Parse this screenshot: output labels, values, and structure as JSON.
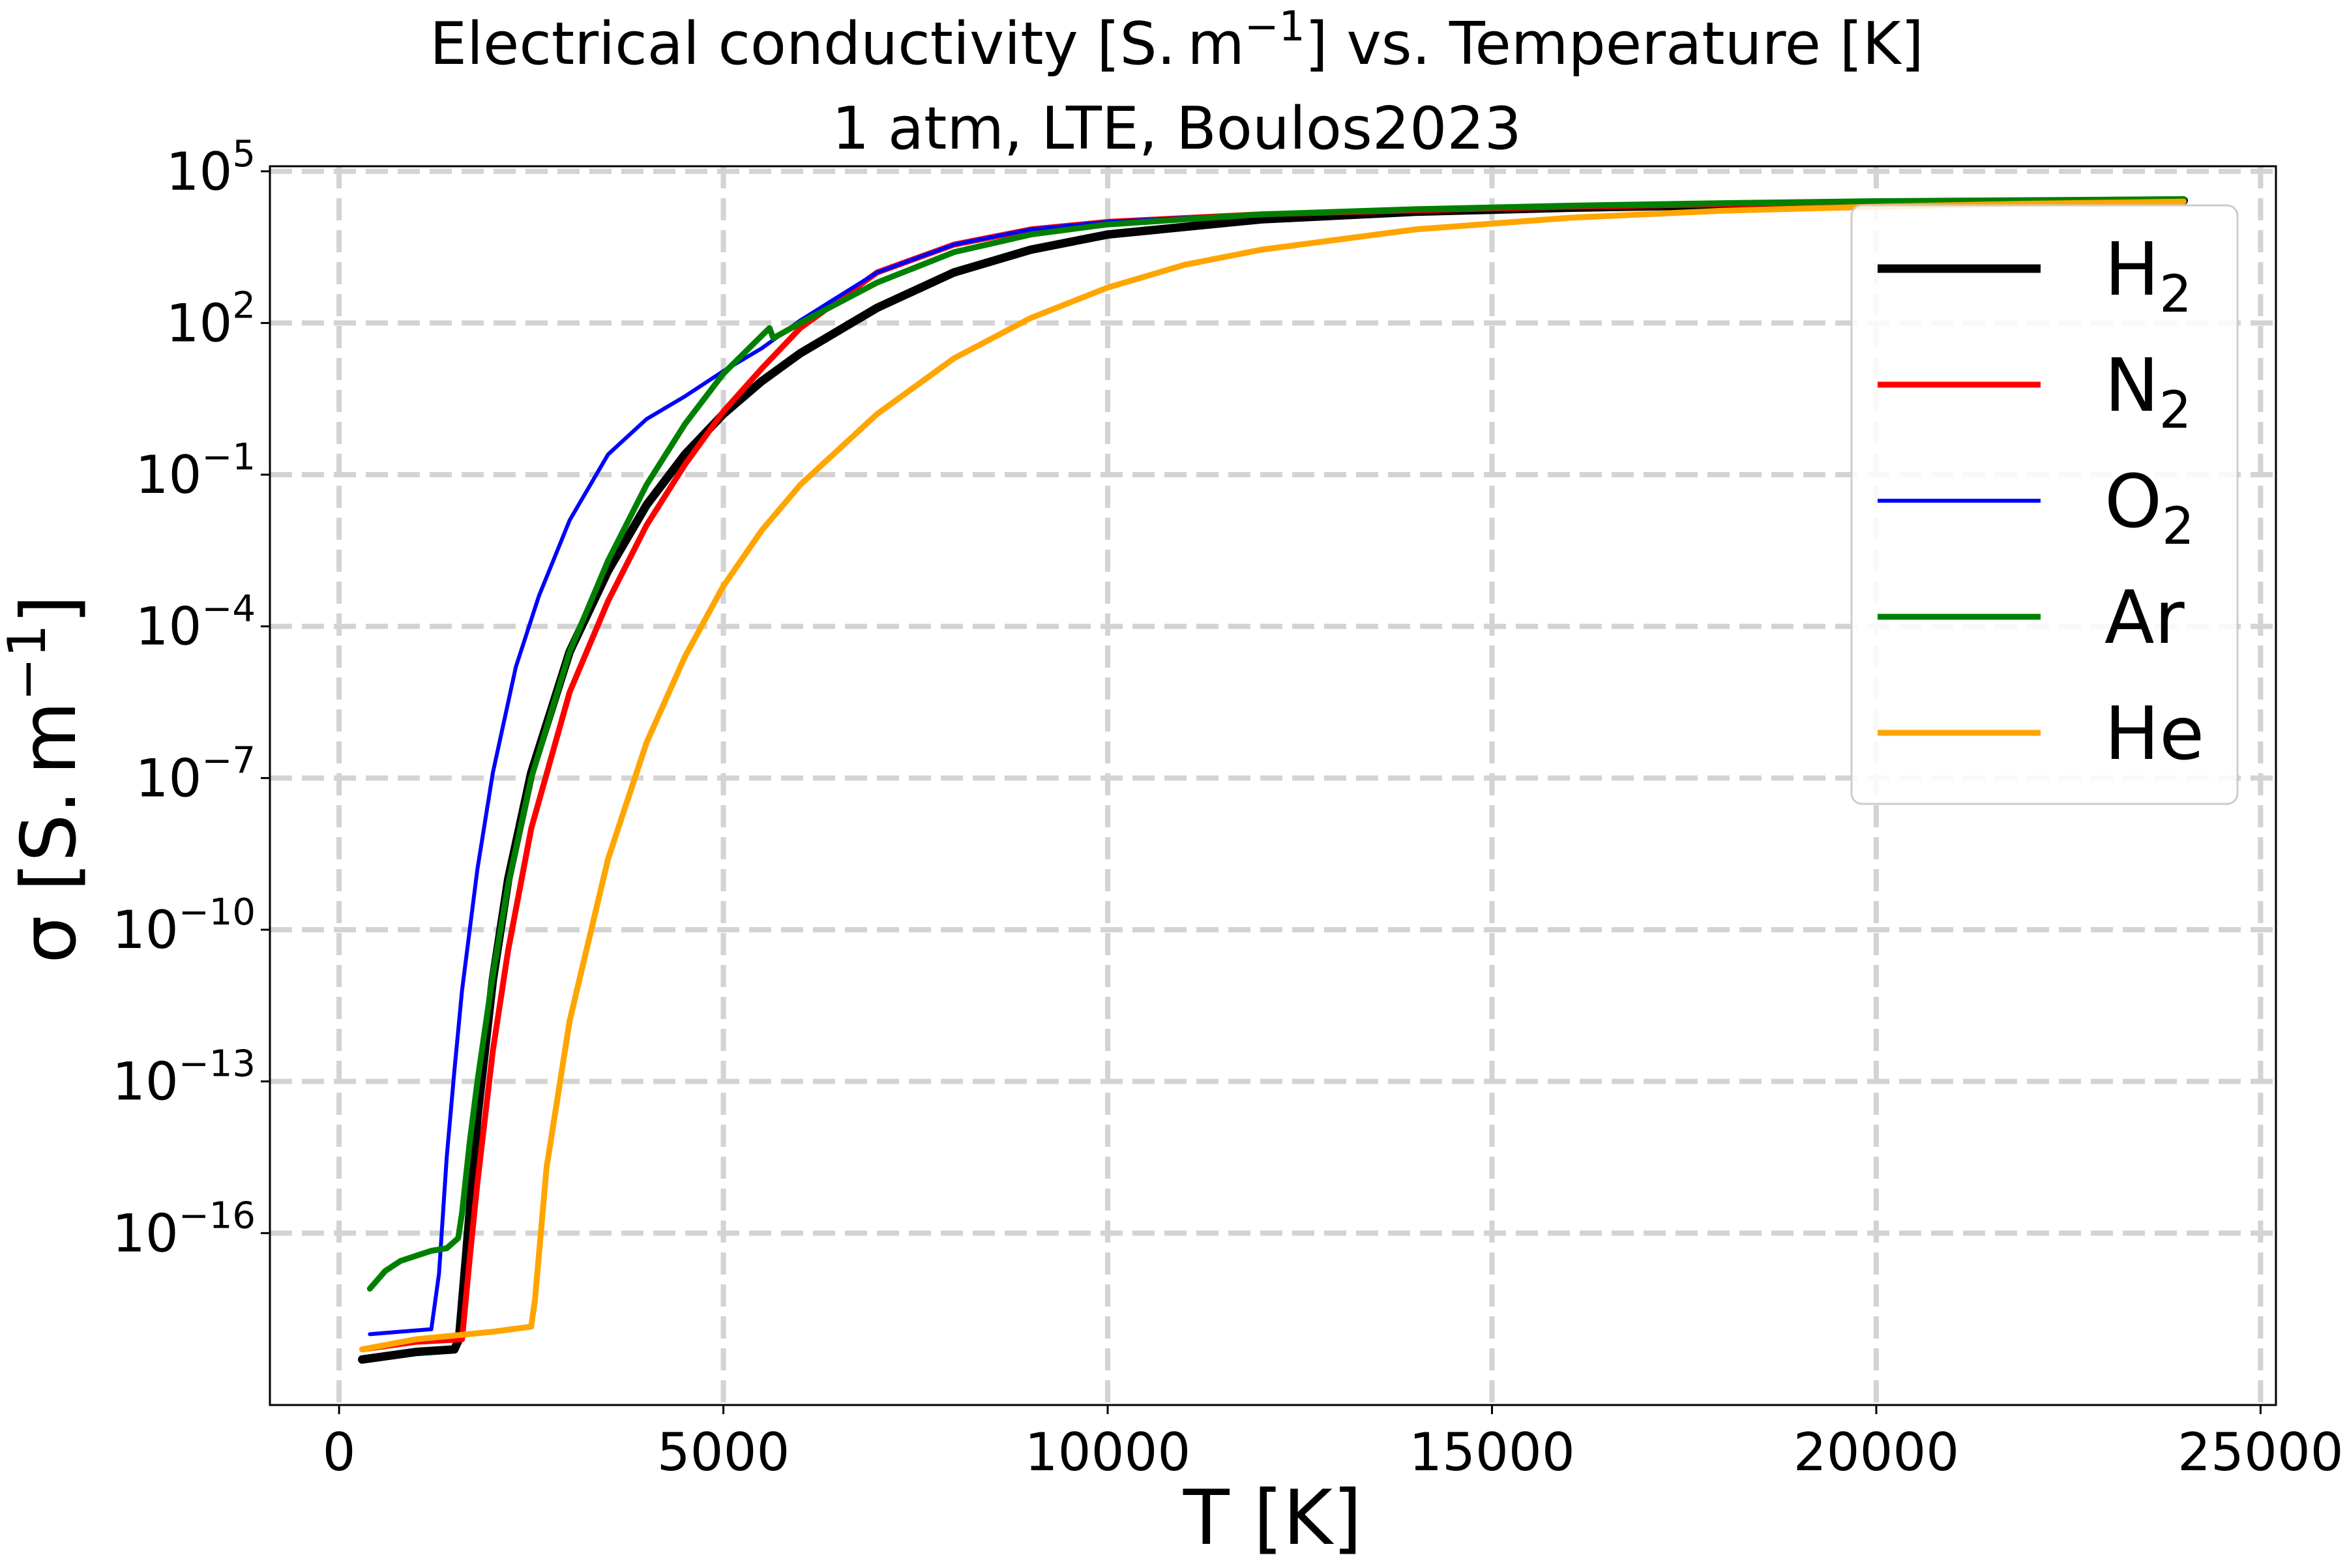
{
  "chart_data": {
    "type": "line",
    "title_line1_parts": [
      "Electrical conductivity [S. m",
      "−1",
      "] vs. Temperature [K]"
    ],
    "title_line2": "1 atm, LTE, Boulos2023",
    "xlabel": "T [K]",
    "ylabel_parts": [
      "σ [S. m",
      "−1",
      "]"
    ],
    "xscale": "linear",
    "yscale": "log",
    "xlim": [
      -900,
      25200
    ],
    "ylim_log10": [
      -19.4,
      5.1
    ],
    "x_ticks": [
      {
        "value": 0,
        "label": "0"
      },
      {
        "value": 5000,
        "label": "5000"
      },
      {
        "value": 10000,
        "label": "10000"
      },
      {
        "value": 15000,
        "label": "15000"
      },
      {
        "value": 20000,
        "label": "20000"
      },
      {
        "value": 25000,
        "label": "25000"
      }
    ],
    "y_ticks": [
      {
        "exp": 5,
        "base": "10",
        "sup": "5"
      },
      {
        "exp": 2,
        "base": "10",
        "sup": "2"
      },
      {
        "exp": -1,
        "base": "10",
        "sup": "−1"
      },
      {
        "exp": -4,
        "base": "10",
        "sup": "−4"
      },
      {
        "exp": -7,
        "base": "10",
        "sup": "−7"
      },
      {
        "exp": -10,
        "base": "10",
        "sup": "−10"
      },
      {
        "exp": -13,
        "base": "10",
        "sup": "−13"
      },
      {
        "exp": -16,
        "base": "10",
        "sup": "−16"
      }
    ],
    "grid": true,
    "legend_position": "upper right",
    "y_values_are": "log10(sigma)",
    "series": [
      {
        "name": "H₂",
        "label_base": "H",
        "label_sub": "2",
        "color": "#000000",
        "width_class": "thick",
        "x": [
          300,
          1000,
          1500,
          1560,
          1650,
          1800,
          2000,
          2200,
          2500,
          3000,
          3500,
          4000,
          4500,
          5000,
          5500,
          6000,
          7000,
          8000,
          9000,
          10000,
          12000,
          14000,
          16000,
          18000,
          20000,
          22000,
          24000
        ],
        "y": [
          -18.5,
          -18.35,
          -18.3,
          -18.1,
          -16.5,
          -13.7,
          -11.0,
          -9.0,
          -6.9,
          -4.5,
          -2.9,
          -1.6,
          -0.6,
          0.2,
          0.85,
          1.4,
          2.3,
          3.0,
          3.45,
          3.75,
          4.05,
          4.2,
          4.28,
          4.33,
          4.37,
          4.4,
          4.42
        ]
      },
      {
        "name": "N₂",
        "label_base": "N",
        "label_sub": "2",
        "color": "#ff0000",
        "width_class": "medium",
        "x": [
          300,
          1000,
          1600,
          1700,
          1800,
          2000,
          2200,
          2500,
          3000,
          3500,
          4000,
          4500,
          5000,
          5500,
          6000,
          7000,
          8000,
          9000,
          10000,
          12000,
          14000,
          16000,
          18000,
          20000,
          22000,
          24000
        ],
        "y": [
          -18.3,
          -18.15,
          -18.1,
          -16.5,
          -15.0,
          -12.4,
          -10.4,
          -8.0,
          -5.3,
          -3.5,
          -2.0,
          -0.8,
          0.25,
          1.1,
          1.9,
          3.0,
          3.55,
          3.85,
          4.0,
          4.15,
          4.23,
          4.3,
          4.35,
          4.4,
          4.42,
          4.45
        ]
      },
      {
        "name": "O₂",
        "label_base": "O",
        "label_sub": "2",
        "color": "#0000ff",
        "width_class": "thin",
        "x": [
          400,
          1200,
          1300,
          1400,
          1500,
          1600,
          1800,
          2000,
          2300,
          2600,
          3000,
          3500,
          4000,
          4500,
          5000,
          5500,
          6000,
          7000,
          8000,
          9000,
          10000,
          12000,
          14000,
          16000,
          18000,
          20000,
          22000,
          24000
        ],
        "y": [
          -18.0,
          -17.9,
          -16.8,
          -14.5,
          -12.8,
          -11.2,
          -8.8,
          -6.9,
          -4.8,
          -3.4,
          -1.9,
          -0.6,
          0.1,
          0.55,
          1.05,
          1.5,
          2.05,
          3.0,
          3.55,
          3.85,
          4.0,
          4.15,
          4.23,
          4.3,
          4.35,
          4.4,
          4.42,
          4.45
        ]
      },
      {
        "name": "Ar",
        "label_base": "Ar",
        "label_sub": "",
        "color": "#008000",
        "width_class": "medium",
        "x": [
          400,
          600,
          800,
          1000,
          1200,
          1400,
          1550,
          1600,
          1700,
          1800,
          2000,
          2200,
          2500,
          3000,
          3500,
          4000,
          4500,
          5000,
          5400,
          5600,
          5650,
          6000,
          7000,
          8000,
          9000,
          10000,
          12000,
          14000,
          16000,
          18000,
          20000,
          22000,
          24000
        ],
        "y": [
          -17.1,
          -16.75,
          -16.55,
          -16.45,
          -16.35,
          -16.3,
          -16.1,
          -15.6,
          -14.2,
          -13.0,
          -10.9,
          -9.1,
          -7.0,
          -4.5,
          -2.7,
          -1.2,
          0.0,
          1.0,
          1.6,
          1.9,
          1.7,
          2.0,
          2.8,
          3.4,
          3.75,
          3.95,
          4.15,
          4.25,
          4.32,
          4.37,
          4.41,
          4.43,
          4.45
        ]
      },
      {
        "name": "He",
        "label_base": "He",
        "label_sub": "",
        "color": "#ffa500",
        "width_class": "medium",
        "x": [
          300,
          1000,
          2000,
          2500,
          2550,
          2700,
          3000,
          3500,
          4000,
          4500,
          5000,
          5500,
          6000,
          7000,
          8000,
          9000,
          10000,
          11000,
          12000,
          14000,
          16000,
          18000,
          20000,
          22000,
          24000
        ],
        "y": [
          -18.3,
          -18.1,
          -17.95,
          -17.85,
          -17.3,
          -14.7,
          -11.8,
          -8.6,
          -6.3,
          -4.6,
          -3.2,
          -2.1,
          -1.2,
          0.2,
          1.3,
          2.1,
          2.7,
          3.15,
          3.45,
          3.85,
          4.08,
          4.22,
          4.3,
          4.36,
          4.4
        ]
      }
    ]
  }
}
